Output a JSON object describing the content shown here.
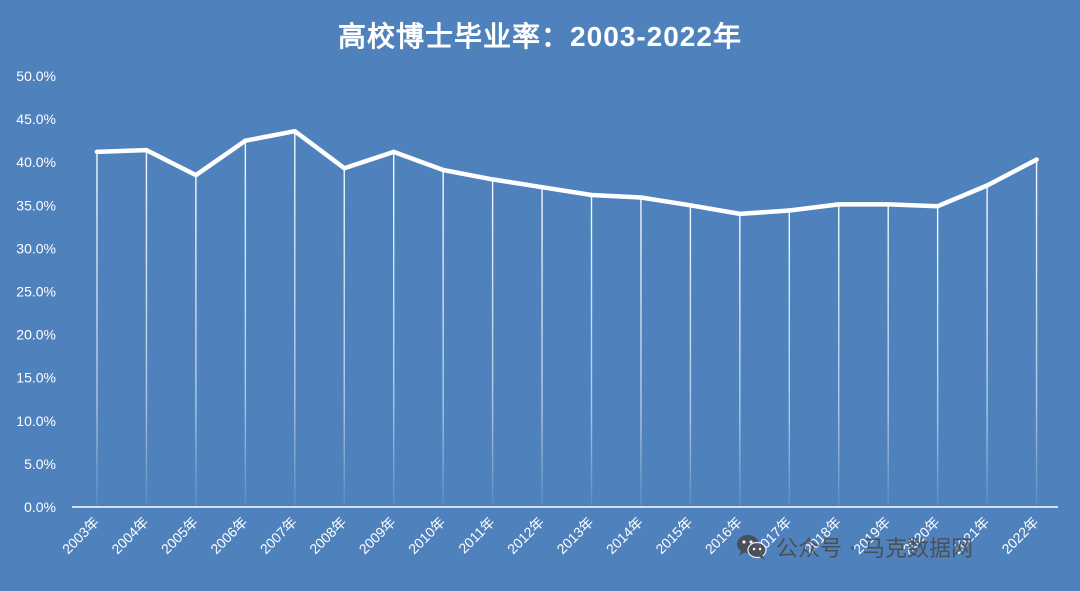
{
  "chart_data": {
    "type": "line",
    "title": "高校博士毕业率：2003-2022年",
    "categories": [
      "2003年",
      "2004年",
      "2005年",
      "2006年",
      "2007年",
      "2008年",
      "2009年",
      "2010年",
      "2011年",
      "2012年",
      "2013年",
      "2014年",
      "2015年",
      "2016年",
      "2017年",
      "2018年",
      "2019年",
      "2020年",
      "2021年",
      "2022年"
    ],
    "series": [
      {
        "values": [
          41.2,
          41.4,
          38.5,
          42.5,
          43.6,
          39.3,
          41.2,
          39.1,
          38.0,
          37.1,
          36.2,
          35.9,
          35.0,
          34.0,
          34.4,
          35.1,
          35.1,
          34.9,
          37.3,
          40.3
        ]
      }
    ],
    "ylim": [
      0,
      50
    ],
    "yticks": [
      "0.0%",
      "5.0%",
      "10.0%",
      "15.0%",
      "20.0%",
      "25.0%",
      "30.0%",
      "35.0%",
      "40.0%",
      "45.0%",
      "50.0%"
    ],
    "xlabel": "",
    "ylabel": "",
    "grid": false,
    "drop_lines": true,
    "colors": {
      "background": "#4f81bd",
      "line": "#ffffff",
      "text": "#ffffff"
    }
  },
  "watermark": {
    "text": "公众号 · 马克数据网",
    "icon": "wechat-icon"
  }
}
